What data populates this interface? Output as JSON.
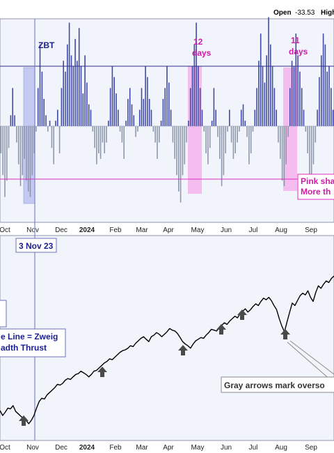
{
  "header": {
    "open_label": "Open",
    "open_value": "-33.53",
    "high_label": "High"
  },
  "colors": {
    "panel_bg": "#f2f4fb",
    "border": "#8e96ad",
    "bar_up": "#3f4aa6",
    "bar_down": "#8d98ad",
    "upper_line": "#2d2d8c",
    "lower_line": "#e02bbf",
    "pink_shade": "#f4b2ec",
    "blue_shade": "#aab3ee",
    "zbt_line": "#7c86c8",
    "label_blue": "#1a1f8c",
    "label_pink": "#d01aa8",
    "arrow": "#4a4a4a",
    "price_line": "#000000"
  },
  "annotations": {
    "zbt": "ZBT",
    "pink_days_1": [
      "12",
      "days"
    ],
    "pink_days_2": [
      "11",
      "days"
    ],
    "pink_note": [
      "Pink sha",
      "More th"
    ],
    "date_box": "3 Nov 23",
    "zweig_note": [
      "e Line = Zweig",
      "adth Thrust"
    ],
    "arrow_note": "Gray arrows mark overso"
  },
  "chart_data": [
    {
      "type": "bar",
      "title": "",
      "x_ticks": [
        "Oct",
        "Nov",
        "Dec",
        "2024",
        "Feb",
        "Mar",
        "Apr",
        "May",
        "Jun",
        "Jul",
        "Aug",
        "Sep"
      ],
      "upper_threshold_level": 0.55,
      "lower_threshold_level": -0.55,
      "y_range": [
        -0.75,
        1.0
      ],
      "values": [
        -0.25,
        -0.45,
        -0.65,
        -0.5,
        -0.2,
        0.1,
        0.35,
        0.1,
        -0.15,
        -0.35,
        -0.55,
        -0.45,
        -0.3,
        -0.5,
        -0.6,
        -0.65,
        -0.45,
        -0.25,
        -0.05,
        0.35,
        0.75,
        0.5,
        0.25,
        0.1,
        -0.05,
        0.05,
        -0.2,
        -0.35,
        0.05,
        0.15,
        -0.25,
        0.35,
        0.6,
        0.5,
        0.75,
        0.95,
        0.65,
        0.55,
        0.8,
        0.6,
        0.9,
        0.55,
        0.3,
        0.65,
        0.4,
        0.2,
        0.15,
        -0.05,
        -0.2,
        -0.35,
        -0.25,
        -0.3,
        -0.15,
        -0.25,
        -0.15,
        0.05,
        0.35,
        0.55,
        0.45,
        0.3,
        0.15,
        -0.05,
        -0.15,
        -0.3,
        0.05,
        0.25,
        0.35,
        0.2,
        0.1,
        -0.1,
        -0.05,
        0.15,
        0.35,
        0.25,
        0.55,
        0.45,
        0.25,
        0.15,
        -0.05,
        -0.15,
        -0.3,
        -0.15,
        0.05,
        0.25,
        0.35,
        0.55,
        0.4,
        0.15,
        -0.15,
        -0.3,
        -0.45,
        -0.6,
        -0.7,
        -0.45,
        -0.35,
        -0.15,
        0.05,
        0.35,
        0.55,
        0.75,
        0.95,
        0.55,
        0.35,
        0.15,
        -0.05,
        -0.25,
        -0.35,
        -0.2,
        0.05,
        0.35,
        0.15,
        -0.1,
        -0.3,
        -0.55,
        -0.45,
        -0.25,
        -0.05,
        0.15,
        -0.15,
        -0.3,
        -0.25,
        -0.15,
        -0.05,
        0.15,
        0.2,
        0.05,
        -0.1,
        -0.35,
        -0.25,
        -0.05,
        0.15,
        0.35,
        0.6,
        0.85,
        0.55,
        0.4,
        0.65,
        1.0,
        0.75,
        0.55,
        0.35,
        0.15,
        -0.15,
        -0.3,
        -0.5,
        -0.55,
        -0.35,
        -0.1,
        0.35,
        0.6,
        0.55,
        0.85,
        0.65,
        0.5,
        0.35,
        0.15,
        -0.05,
        -0.25,
        -0.45,
        -0.55,
        -0.35,
        -0.15,
        0.15,
        0.45,
        0.65,
        0.85,
        0.75,
        0.5,
        0.55,
        0.35,
        0.15
      ]
    },
    {
      "type": "line",
      "title": "",
      "x_ticks": [
        "Oct",
        "Nov",
        "Dec",
        "2024",
        "Feb",
        "Mar",
        "Apr",
        "May",
        "Jun",
        "Jul",
        "Aug",
        "Sep"
      ],
      "values": [
        0.22,
        0.16,
        0.2,
        0.25,
        0.24,
        0.28,
        0.21,
        0.18,
        0.15,
        0.12,
        0.1,
        0.06,
        0.1,
        0.16,
        0.25,
        0.33,
        0.37,
        0.36,
        0.41,
        0.44,
        0.47,
        0.5,
        0.54,
        0.53,
        0.55,
        0.59,
        0.61,
        0.6,
        0.63,
        0.66,
        0.67,
        0.7,
        0.68,
        0.66,
        0.63,
        0.66,
        0.7,
        0.71,
        0.74,
        0.77,
        0.8,
        0.82,
        0.85,
        0.84,
        0.87,
        0.9,
        0.93,
        0.95,
        0.96,
        0.98,
        1.01,
        1.0,
        1.04,
        1.07,
        1.1,
        1.12,
        1.09,
        1.06,
        1.12,
        1.14,
        1.17,
        1.15,
        1.12,
        1.15,
        1.18,
        1.22,
        1.2,
        1.19,
        1.16,
        1.11,
        1.06,
        1.03,
        1.01,
        0.98,
        1.03,
        1.07,
        1.09,
        1.11,
        1.1,
        1.14,
        1.17,
        1.21,
        1.2,
        1.19,
        1.23,
        1.26,
        1.29,
        1.27,
        1.31,
        1.34,
        1.37,
        1.35,
        1.4,
        1.43,
        1.46,
        1.42,
        1.45,
        1.49,
        1.52,
        1.5,
        1.55,
        1.59,
        1.57,
        1.6,
        1.56,
        1.5,
        1.45,
        1.34,
        1.25,
        1.18,
        1.3,
        1.42,
        1.53,
        1.5,
        1.56,
        1.62,
        1.65,
        1.63,
        1.68,
        1.6,
        1.55,
        1.66,
        1.74,
        1.71,
        1.76,
        1.8,
        1.78,
        1.83,
        1.86
      ]
    }
  ]
}
